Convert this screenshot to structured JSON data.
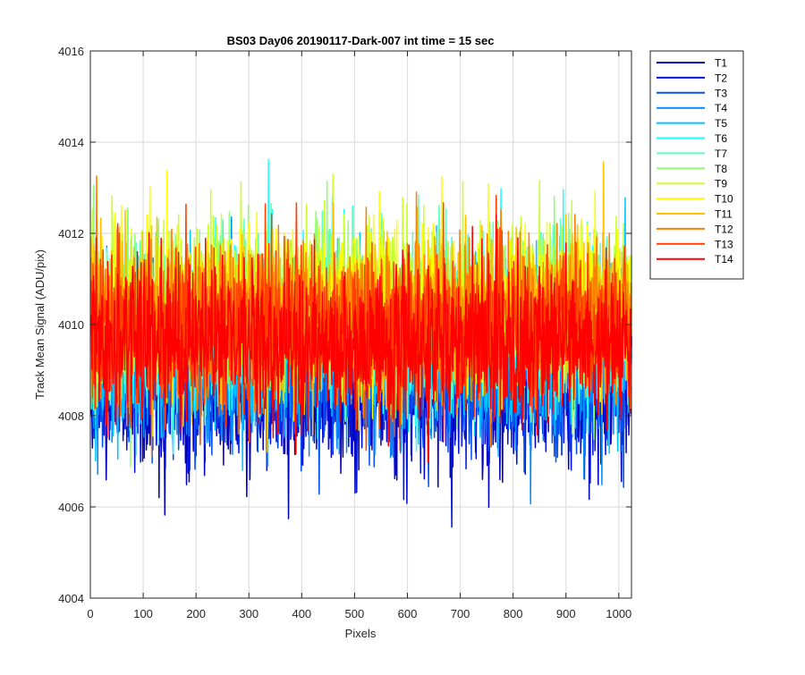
{
  "chart_data": {
    "type": "line",
    "title": "BS03 Day06 20190117-Dark-007 int time = 15 sec",
    "xlabel": "Pixels",
    "ylabel": "Track Mean Signal (ADU/pix)",
    "xlim": [
      0,
      1024
    ],
    "ylim": [
      4004,
      4016
    ],
    "x_ticks": [
      0,
      100,
      200,
      300,
      400,
      500,
      600,
      700,
      800,
      900,
      1000
    ],
    "y_ticks": [
      4004,
      4006,
      4008,
      4010,
      4012,
      4014,
      4016
    ],
    "grid": true,
    "legend_position": "outside-top-right",
    "x": {
      "start": 1,
      "end": 1024,
      "step": 1
    },
    "series": [
      {
        "name": "T1",
        "color": "#0000bf",
        "mean": 4008.6,
        "std": 0.85
      },
      {
        "name": "T2",
        "color": "#0014d8",
        "mean": 4008.8,
        "std": 0.85
      },
      {
        "name": "T3",
        "color": "#0050f0",
        "mean": 4009.0,
        "std": 0.85
      },
      {
        "name": "T4",
        "color": "#008cff",
        "mean": 4009.3,
        "std": 0.9
      },
      {
        "name": "T5",
        "color": "#00c4ff",
        "mean": 4009.6,
        "std": 0.9
      },
      {
        "name": "T6",
        "color": "#20ffff",
        "mean": 4010.0,
        "std": 0.9
      },
      {
        "name": "T7",
        "color": "#60ffc0",
        "mean": 4010.2,
        "std": 0.9
      },
      {
        "name": "T8",
        "color": "#90ff70",
        "mean": 4010.3,
        "std": 0.9
      },
      {
        "name": "T9",
        "color": "#c8ff30",
        "mean": 4010.4,
        "std": 0.9
      },
      {
        "name": "T10",
        "color": "#ffff00",
        "mean": 4010.4,
        "std": 0.9
      },
      {
        "name": "T11",
        "color": "#ffc000",
        "mean": 4010.2,
        "std": 0.9
      },
      {
        "name": "T12",
        "color": "#ff8000",
        "mean": 4010.1,
        "std": 0.9
      },
      {
        "name": "T13",
        "color": "#ff4000",
        "mean": 4009.9,
        "std": 0.9
      },
      {
        "name": "T14",
        "color": "#ff0000",
        "mean": 4009.6,
        "std": 0.85
      }
    ]
  }
}
